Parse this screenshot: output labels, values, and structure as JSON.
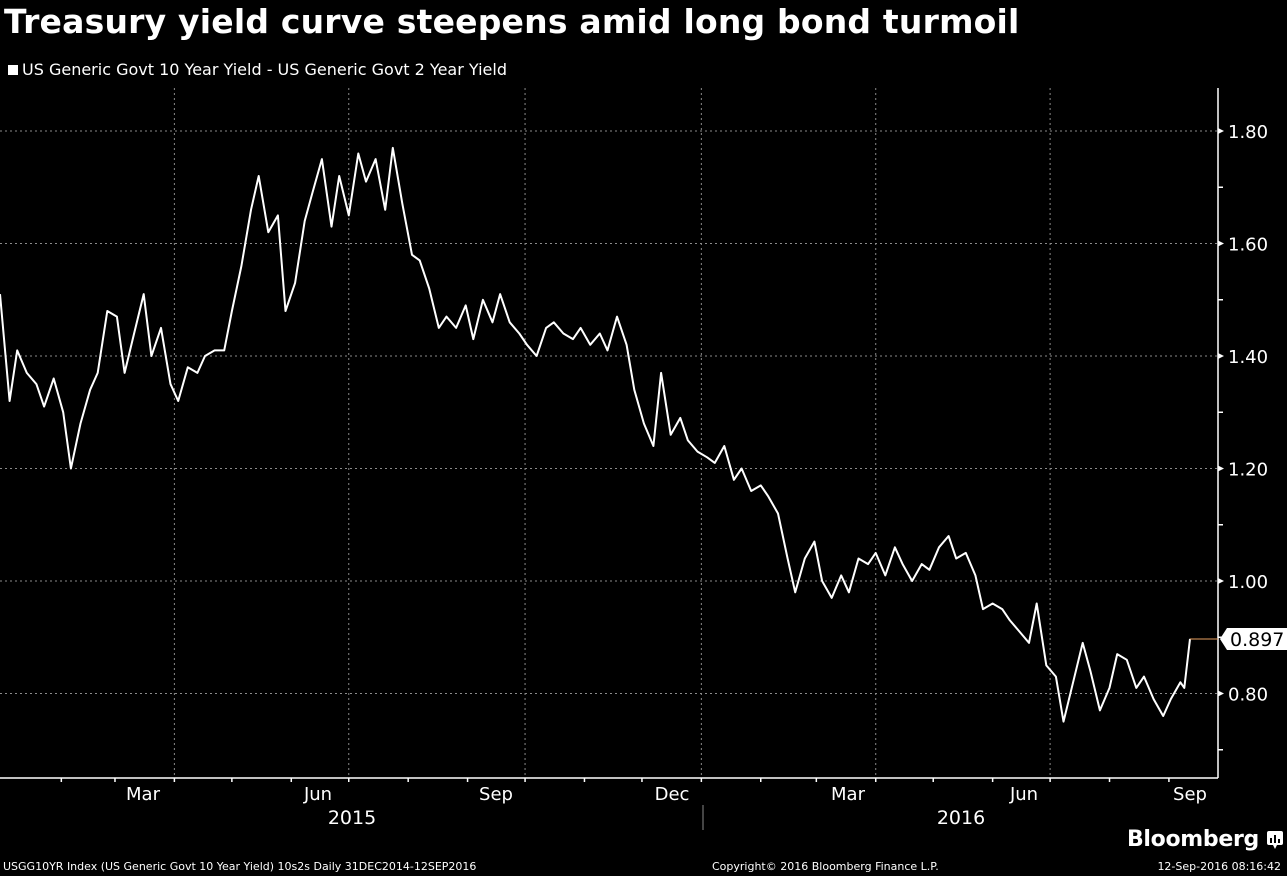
{
  "header": {
    "title": "Treasury yield curve steepens amid long bond turmoil",
    "legend_label": "US Generic Govt 10 Year Yield - US Generic Govt 2 Year Yield"
  },
  "colors": {
    "background": "#000000",
    "series_line": "#ffffff",
    "last_value_line": "#e8a060",
    "grid": "#8a8a8a"
  },
  "footer": {
    "source": "USGG10YR Index (US Generic Govt 10 Year Yield) 10s2s  Daily 31DEC2014-12SEP2016",
    "copyright": "Copyright© 2016 Bloomberg Finance L.P.",
    "timestamp": "12-Sep-2016 08:16:42",
    "brand": "Bloomberg",
    "brand_icon": "bloomberg-chart-icon"
  },
  "chart_data": {
    "type": "line",
    "title": "Treasury yield curve steepens amid long bond turmoil",
    "xlabel": "",
    "ylabel": "",
    "ylim": [
      0.68,
      1.88
    ],
    "yticks": [
      "1.80",
      "1.60",
      "1.40",
      "1.20",
      "1.00",
      "0.80"
    ],
    "xticks": [
      "Mar",
      "Jun",
      "Sep",
      "Dec",
      "Mar",
      "Jun",
      "Sep"
    ],
    "year_labels": [
      "2015",
      "2016"
    ],
    "grid": true,
    "legend_position": "top-left",
    "last_value_label": "0.897",
    "series": [
      {
        "name": "US Generic Govt 10 Year Yield - US Generic Govt 2 Year Yield",
        "x": [
          "2014-12-31",
          "2015-01-05",
          "2015-01-09",
          "2015-01-14",
          "2015-01-19",
          "2015-01-23",
          "2015-01-28",
          "2015-02-02",
          "2015-02-06",
          "2015-02-11",
          "2015-02-16",
          "2015-02-20",
          "2015-02-25",
          "2015-03-02",
          "2015-03-06",
          "2015-03-11",
          "2015-03-16",
          "2015-03-20",
          "2015-03-25",
          "2015-03-30",
          "2015-04-03",
          "2015-04-08",
          "2015-04-13",
          "2015-04-17",
          "2015-04-22",
          "2015-04-27",
          "2015-05-01",
          "2015-05-06",
          "2015-05-11",
          "2015-05-15",
          "2015-05-20",
          "2015-05-25",
          "2015-05-29",
          "2015-06-03",
          "2015-06-08",
          "2015-06-12",
          "2015-06-17",
          "2015-06-22",
          "2015-06-26",
          "2015-07-01",
          "2015-07-06",
          "2015-07-10",
          "2015-07-15",
          "2015-07-20",
          "2015-07-24",
          "2015-07-29",
          "2015-08-03",
          "2015-08-07",
          "2015-08-12",
          "2015-08-17",
          "2015-08-21",
          "2015-08-26",
          "2015-08-31",
          "2015-09-04",
          "2015-09-09",
          "2015-09-14",
          "2015-09-18",
          "2015-09-23",
          "2015-09-28",
          "2015-10-02",
          "2015-10-07",
          "2015-10-12",
          "2015-10-16",
          "2015-10-21",
          "2015-10-26",
          "2015-10-30",
          "2015-11-04",
          "2015-11-09",
          "2015-11-13",
          "2015-11-18",
          "2015-11-23",
          "2015-11-27",
          "2015-12-02",
          "2015-12-07",
          "2015-12-11",
          "2015-12-16",
          "2015-12-21",
          "2015-12-25",
          "2015-12-30",
          "2016-01-04",
          "2016-01-08",
          "2016-01-13",
          "2016-01-18",
          "2016-01-22",
          "2016-01-27",
          "2016-02-01",
          "2016-02-05",
          "2016-02-10",
          "2016-02-15",
          "2016-02-19",
          "2016-02-24",
          "2016-02-29",
          "2016-03-04",
          "2016-03-09",
          "2016-03-14",
          "2016-03-18",
          "2016-03-23",
          "2016-03-28",
          "2016-04-01",
          "2016-04-06",
          "2016-04-11",
          "2016-04-15",
          "2016-04-20",
          "2016-04-25",
          "2016-04-29",
          "2016-05-04",
          "2016-05-09",
          "2016-05-13",
          "2016-05-18",
          "2016-05-23",
          "2016-05-27",
          "2016-06-01",
          "2016-06-06",
          "2016-06-10",
          "2016-06-15",
          "2016-06-20",
          "2016-06-24",
          "2016-06-29",
          "2016-07-04",
          "2016-07-08",
          "2016-07-13",
          "2016-07-18",
          "2016-07-22",
          "2016-07-27",
          "2016-08-01",
          "2016-08-05",
          "2016-08-10",
          "2016-08-15",
          "2016-08-19",
          "2016-08-24",
          "2016-08-29",
          "2016-09-02",
          "2016-09-07",
          "2016-09-09",
          "2016-09-12"
        ],
        "values": [
          1.51,
          1.32,
          1.41,
          1.37,
          1.35,
          1.31,
          1.36,
          1.3,
          1.2,
          1.28,
          1.34,
          1.37,
          1.48,
          1.47,
          1.37,
          1.44,
          1.51,
          1.4,
          1.45,
          1.35,
          1.32,
          1.38,
          1.37,
          1.4,
          1.41,
          1.41,
          1.48,
          1.56,
          1.66,
          1.72,
          1.62,
          1.65,
          1.48,
          1.53,
          1.64,
          1.69,
          1.75,
          1.63,
          1.72,
          1.65,
          1.76,
          1.71,
          1.75,
          1.66,
          1.77,
          1.67,
          1.58,
          1.57,
          1.52,
          1.45,
          1.47,
          1.45,
          1.49,
          1.43,
          1.5,
          1.46,
          1.51,
          1.46,
          1.44,
          1.42,
          1.4,
          1.45,
          1.46,
          1.44,
          1.43,
          1.45,
          1.42,
          1.44,
          1.41,
          1.47,
          1.42,
          1.34,
          1.28,
          1.24,
          1.37,
          1.26,
          1.29,
          1.25,
          1.23,
          1.22,
          1.21,
          1.24,
          1.18,
          1.2,
          1.16,
          1.17,
          1.15,
          1.12,
          1.04,
          0.98,
          1.04,
          1.07,
          1.0,
          0.97,
          1.01,
          0.98,
          1.04,
          1.03,
          1.05,
          1.01,
          1.06,
          1.03,
          1.0,
          1.03,
          1.02,
          1.06,
          1.08,
          1.04,
          1.05,
          1.01,
          0.95,
          0.96,
          0.95,
          0.93,
          0.91,
          0.89,
          0.96,
          0.85,
          0.83,
          0.75,
          0.82,
          0.89,
          0.84,
          0.77,
          0.81,
          0.87,
          0.86,
          0.81,
          0.83,
          0.79,
          0.76,
          0.79,
          0.82,
          0.81,
          0.897
        ]
      }
    ]
  }
}
